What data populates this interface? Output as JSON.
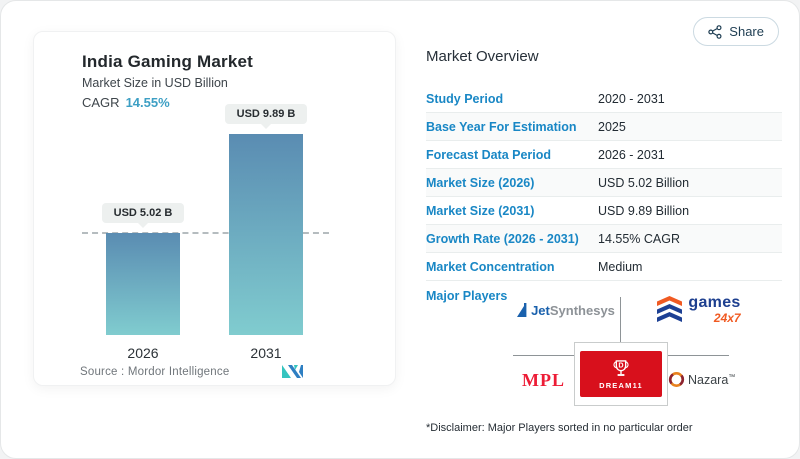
{
  "page": {
    "share_label": "Share"
  },
  "chart_card": {
    "title": "India Gaming Market",
    "subtitle": "Market Size in USD Billion",
    "cagr_label": "CAGR",
    "cagr_value": "14.55%",
    "source_label": "Source :  Mordor Intelligence"
  },
  "chart_data": {
    "type": "bar",
    "title": "India Gaming Market",
    "ylabel": "Market Size in USD Billion",
    "categories": [
      "2026",
      "2031"
    ],
    "values": [
      5.02,
      9.89
    ],
    "value_labels": [
      "USD 5.02 B",
      "USD 9.89 B"
    ],
    "cagr": "14.55%",
    "reference_line": 5.02,
    "grid": false,
    "bar_gradient_top": "#5a8cb2",
    "bar_gradient_bottom": "#80cccf"
  },
  "overview": {
    "title": "Market Overview",
    "rows": [
      {
        "label": "Study Period",
        "value": "2020 - 2031"
      },
      {
        "label": "Base Year For Estimation",
        "value": "2025"
      },
      {
        "label": "Forecast Data Period",
        "value": "2026 - 2031"
      },
      {
        "label": "Market Size (2026)",
        "value": "USD 5.02 Billion"
      },
      {
        "label": "Market Size (2031)",
        "value": "USD 9.89 Billion"
      },
      {
        "label": "Growth Rate (2026 - 2031)",
        "value": "14.55% CAGR"
      },
      {
        "label": "Market Concentration",
        "value": "Medium"
      }
    ],
    "major_players_label": "Major Players",
    "disclaimer": "*Disclaimer: Major Players sorted in no particular order"
  },
  "players": {
    "jet_bold": "Jet",
    "jet_rest": "Synthesys",
    "games_top": "games",
    "games_bot": "24x7",
    "mpl": "MPL",
    "dream11": "DREAM11",
    "nazara": "Nazara"
  },
  "icons": {
    "share": "share-nodes-icon",
    "mordor_logo": "mordor-intelligence-logo",
    "dream11_trophy": "trophy-icon"
  },
  "colors": {
    "accent_blue_label": "#1987c5",
    "cagr_teal": "#3d9fc4",
    "bar_top": "#5a8cb2",
    "bar_bottom": "#80cccf",
    "mpl_red": "#ed1c36",
    "dream11_red": "#d8101c",
    "games_orange": "#f05a22",
    "games_navy": "#1d3f8f",
    "jet_blue": "#1a61ad"
  }
}
